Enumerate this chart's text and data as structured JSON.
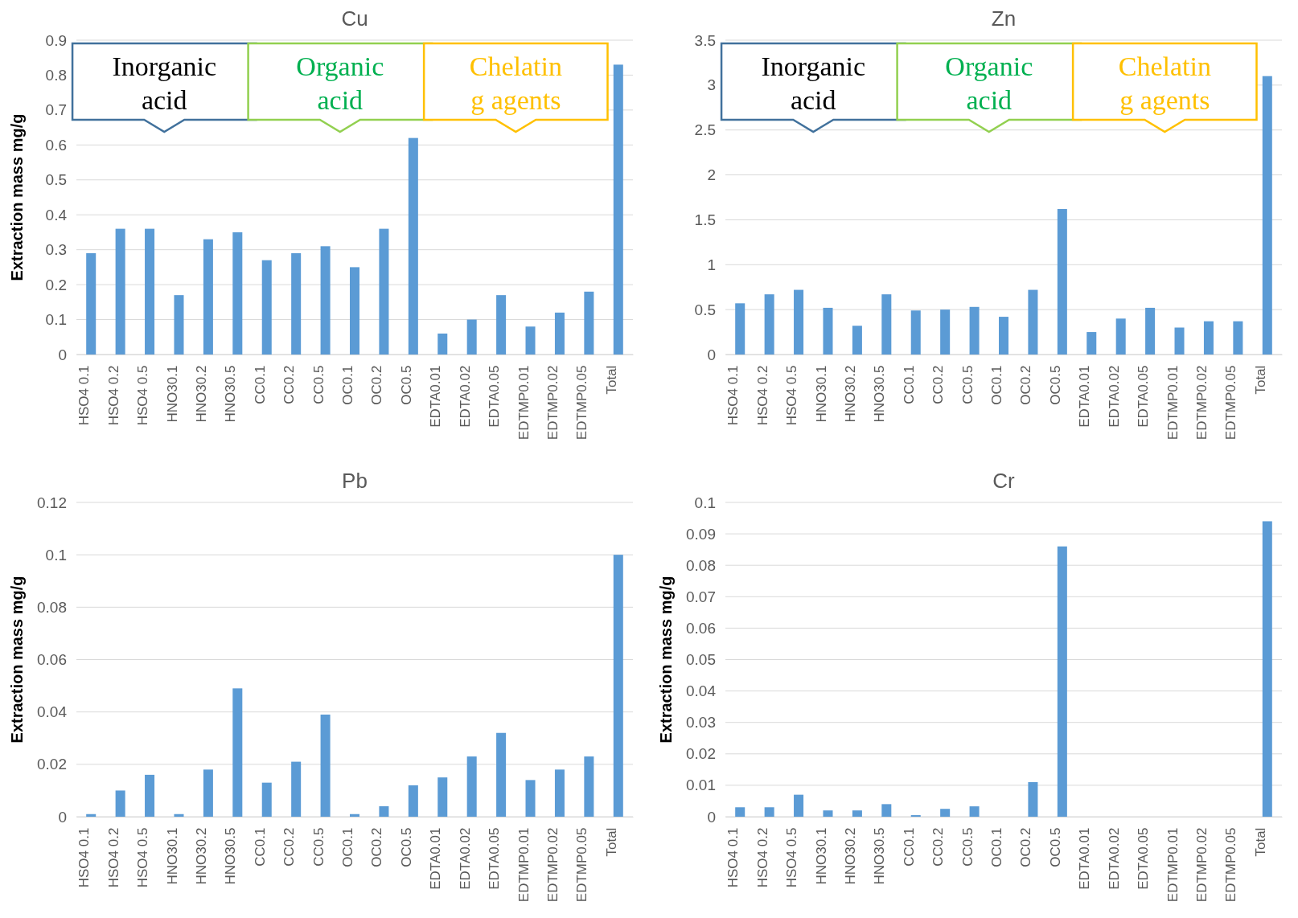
{
  "chart_data": [
    {
      "type": "bar",
      "title": "Cu",
      "ylabel": "Extraction mass mg/g",
      "categories": [
        "HSO4 0.1",
        "HSO4 0.2",
        "HSO4 0.5",
        "HNO30.1",
        "HNO30.2",
        "HNO30.5",
        "CC0.1",
        "CC0.2",
        "CC0.5",
        "OC0.1",
        "OC0.2",
        "OC0.5",
        "EDTA0.01",
        "EDTA0.02",
        "EDTA0.05",
        "EDTMP0.01",
        "EDTMP0.02",
        "EDTMP0.05",
        "Total"
      ],
      "color": "#5b9bd5",
      "values": [
        0.29,
        0.36,
        0.36,
        0.17,
        0.33,
        0.35,
        0.27,
        0.29,
        0.31,
        0.25,
        0.36,
        0.62,
        0.06,
        0.1,
        0.17,
        0.08,
        0.12,
        0.18,
        0.83
      ],
      "ylim": [
        0,
        0.9
      ],
      "yticks": [
        0,
        0.1,
        0.2,
        0.3,
        0.4,
        0.5,
        0.6,
        0.7,
        0.8,
        0.9
      ],
      "grid": "y",
      "annotations": [
        "Inorganic acid",
        "Organic acid",
        "Chelatin g agents"
      ]
    },
    {
      "type": "bar",
      "title": "Zn",
      "categories": [
        "HSO4 0.1",
        "HSO4 0.2",
        "HSO4 0.5",
        "HNO30.1",
        "HNO30.2",
        "HNO30.5",
        "CC0.1",
        "CC0.2",
        "CC0.5",
        "OC0.1",
        "OC0.2",
        "OC0.5",
        "EDTA0.01",
        "EDTA0.02",
        "EDTA0.05",
        "EDTMP0.01",
        "EDTMP0.02",
        "EDTMP0.05",
        "Total"
      ],
      "color": "#5b9bd5",
      "values": [
        0.57,
        0.67,
        0.72,
        0.52,
        0.32,
        0.67,
        0.49,
        0.5,
        0.53,
        0.42,
        0.72,
        1.62,
        0.25,
        0.4,
        0.52,
        0.3,
        0.37,
        0.37,
        3.1
      ],
      "ylim": [
        0,
        3.5
      ],
      "yticks": [
        0,
        0.5,
        1,
        1.5,
        2,
        2.5,
        3,
        3.5
      ],
      "grid": "y",
      "annotations": [
        "Inorganic acid",
        "Organic acid",
        "Chelatin g agents"
      ]
    },
    {
      "type": "bar",
      "title": "Pb",
      "ylabel": "Extraction mass mg/g",
      "categories": [
        "HSO4 0.1",
        "HSO4 0.2",
        "HSO4 0.5",
        "HNO30.1",
        "HNO30.2",
        "HNO30.5",
        "CC0.1",
        "CC0.2",
        "CC0.5",
        "OC0.1",
        "OC0.2",
        "OC0.5",
        "EDTA0.01",
        "EDTA0.02",
        "EDTA0.05",
        "EDTMP0.01",
        "EDTMP0.02",
        "EDTMP0.05",
        "Total"
      ],
      "color": "#5b9bd5",
      "values": [
        0.001,
        0.01,
        0.016,
        0.001,
        0.018,
        0.049,
        0.013,
        0.021,
        0.039,
        0.001,
        0.004,
        0.012,
        0.015,
        0.023,
        0.032,
        0.014,
        0.018,
        0.023,
        0.1
      ],
      "ylim": [
        0,
        0.12
      ],
      "yticks": [
        0,
        0.02,
        0.04,
        0.06,
        0.08,
        0.1,
        0.12
      ],
      "grid": "y"
    },
    {
      "type": "bar",
      "title": "Cr",
      "ylabel": "Extraction mass mg/g",
      "categories": [
        "HSO4 0.1",
        "HSO4 0.2",
        "HSO4 0.5",
        "HNO30.1",
        "HNO30.2",
        "HNO30.5",
        "CC0.1",
        "CC0.2",
        "CC0.5",
        "OC0.1",
        "OC0.2",
        "OC0.5",
        "EDTA0.01",
        "EDTA0.02",
        "EDTA0.05",
        "EDTMP0.01",
        "EDTMP0.02",
        "EDTMP0.05",
        "Total"
      ],
      "color": "#5b9bd5",
      "values": [
        0.003,
        0.003,
        0.007,
        0.002,
        0.002,
        0.004,
        0.0005,
        0.0025,
        0.0033,
        0,
        0.011,
        0.086,
        0,
        0,
        0,
        0,
        0,
        0,
        0.094
      ],
      "ylim": [
        0,
        0.1
      ],
      "yticks": [
        0,
        0.01,
        0.02,
        0.03,
        0.04,
        0.05,
        0.06,
        0.07,
        0.08,
        0.09,
        0.1
      ],
      "grid": "y"
    }
  ]
}
